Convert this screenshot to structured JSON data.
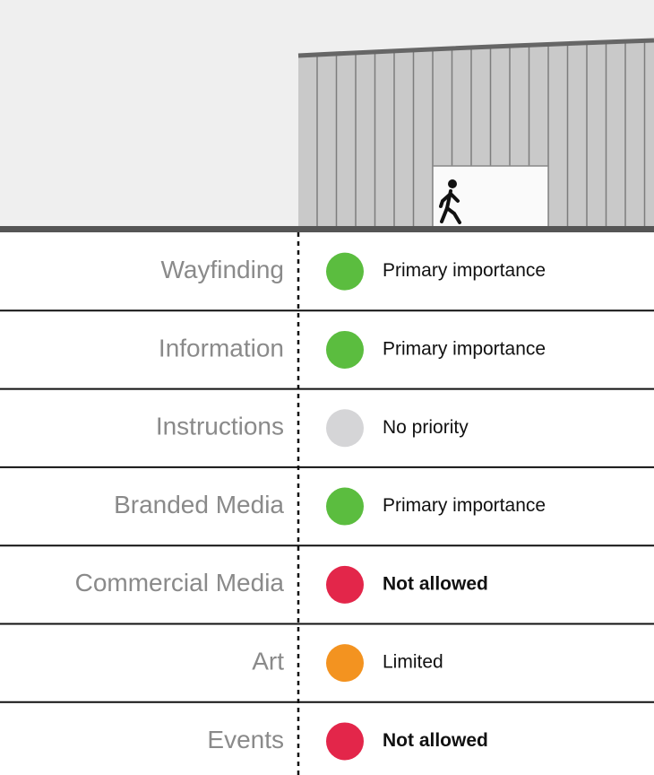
{
  "rows": [
    {
      "label": "Wayfinding",
      "status": "Primary importance",
      "color": "#5bbd3f",
      "bold": false
    },
    {
      "label": "Information",
      "status": "Primary importance",
      "color": "#5bbd3f",
      "bold": false
    },
    {
      "label": "Instructions",
      "status": "No priority",
      "color": "#d5d5d7",
      "bold": false
    },
    {
      "label": "Branded Media",
      "status": "Primary importance",
      "color": "#5bbd3f",
      "bold": false
    },
    {
      "label": "Commercial Media",
      "status": "Not allowed",
      "color": "#e3264a",
      "bold": true
    },
    {
      "label": "Art",
      "status": "Limited",
      "color": "#f39320",
      "bold": false
    },
    {
      "label": "Events",
      "status": "Not allowed",
      "color": "#e3264a",
      "bold": true
    }
  ]
}
